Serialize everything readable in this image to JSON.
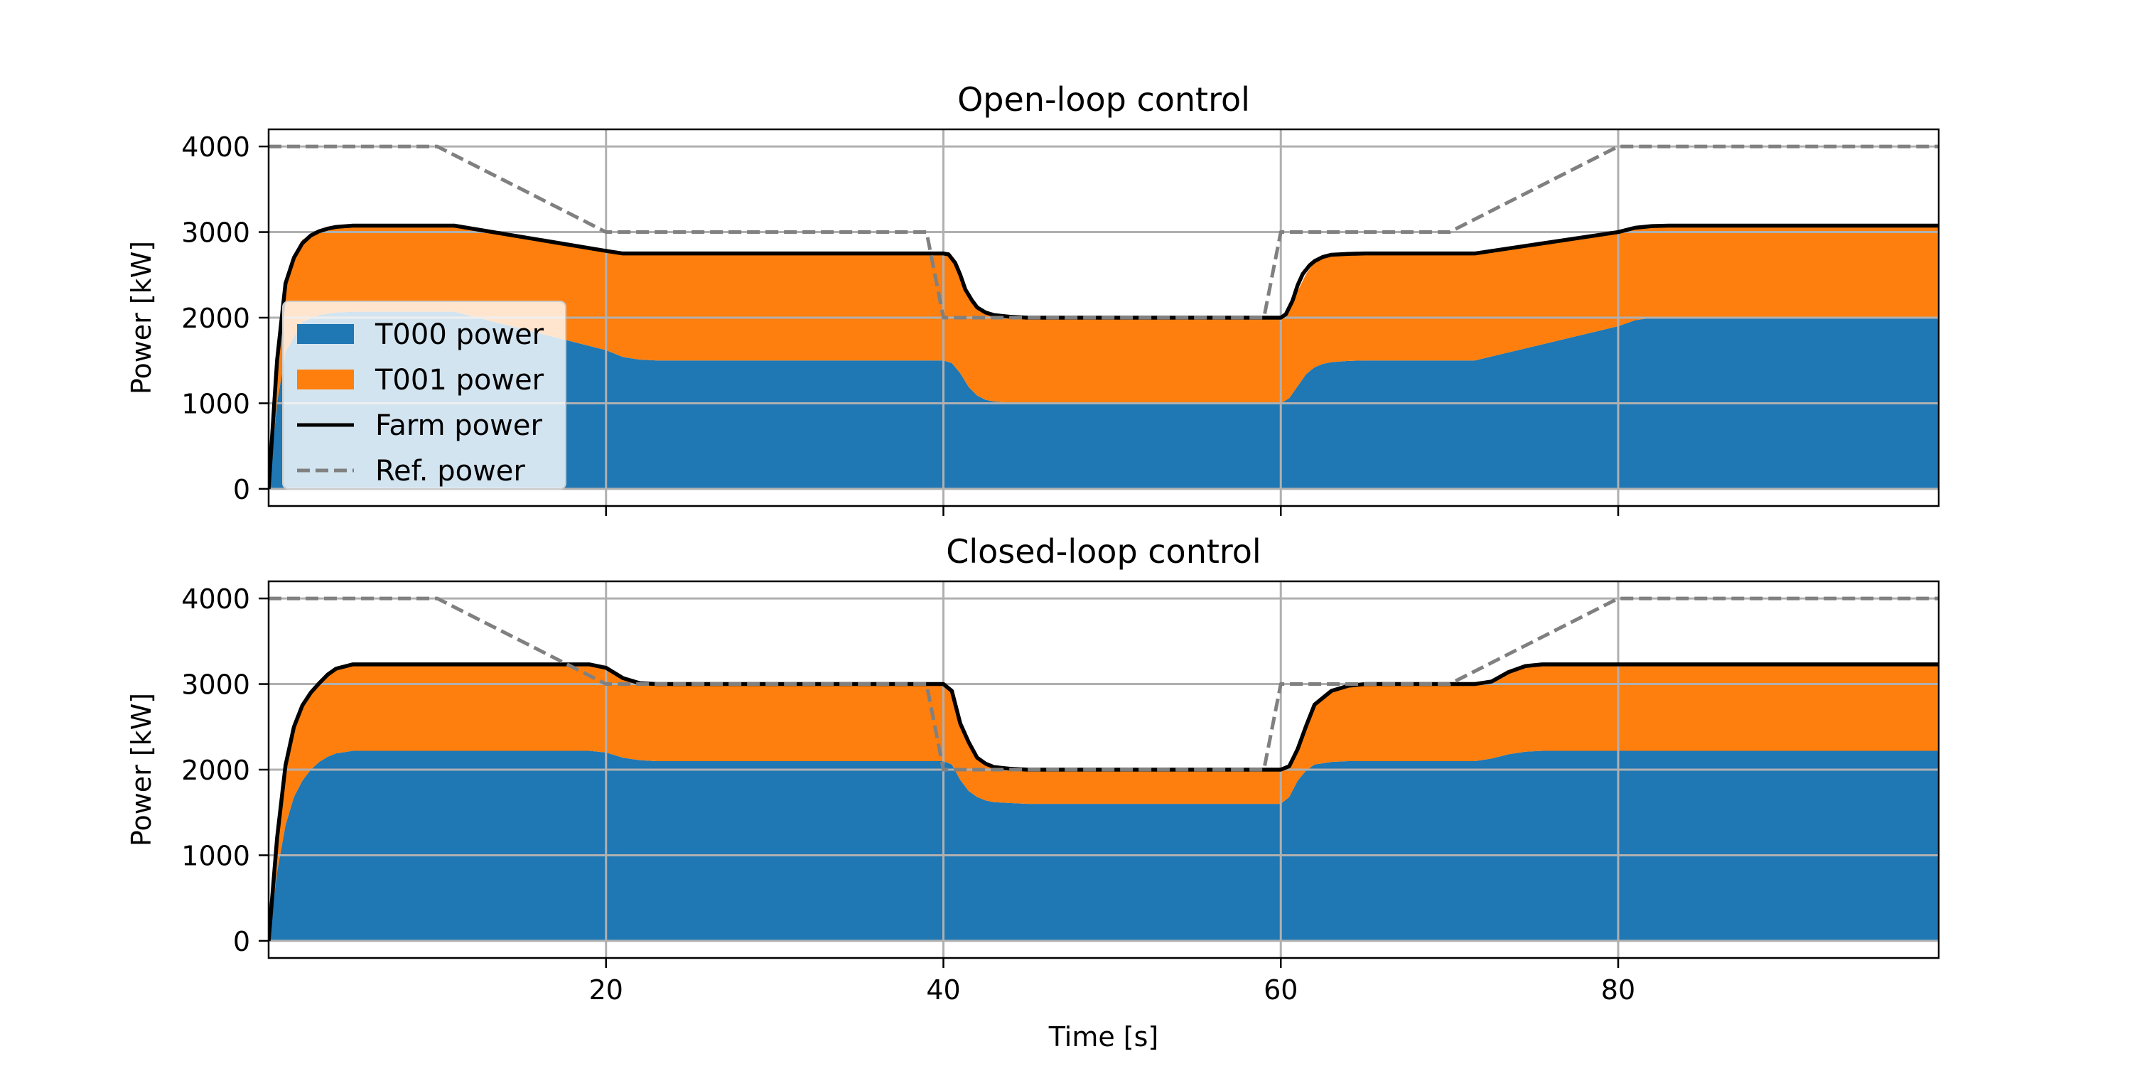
{
  "chart_data": [
    {
      "type": "area",
      "title": "Open-loop control",
      "xlabel": "",
      "ylabel": "Power [kW]",
      "xlim": [
        0,
        99
      ],
      "ylim": [
        -200,
        4200
      ],
      "x_ticks": [
        20,
        40,
        60,
        80
      ],
      "x_tick_labels": [
        "",
        "",
        "",
        ""
      ],
      "y_ticks": [
        0,
        1000,
        2000,
        3000,
        4000
      ],
      "y_tick_labels": [
        "0",
        "1000",
        "2000",
        "3000",
        "4000"
      ],
      "grid": true,
      "legend": {
        "placement": "center-left",
        "entries": [
          {
            "label": "T000 power",
            "kind": "patch",
            "color": "#1f77b4"
          },
          {
            "label": "T001 power",
            "kind": "patch",
            "color": "#ff7f0e"
          },
          {
            "label": "Farm power",
            "kind": "line",
            "color": "#000000",
            "style": "solid"
          },
          {
            "label": "Ref. power",
            "kind": "line",
            "color": "#808080",
            "style": "dashed"
          }
        ]
      },
      "stacked_series": [
        {
          "name": "T000 power",
          "color": "#1f77b4",
          "points": [
            [
              0,
              0
            ],
            [
              0.5,
              1000
            ],
            [
              1,
              1600
            ],
            [
              2,
              1950
            ],
            [
              3,
              2030
            ],
            [
              4,
              2060
            ],
            [
              5,
              2070
            ],
            [
              11,
              2070
            ],
            [
              20,
              1620
            ],
            [
              21,
              1540
            ],
            [
              22,
              1510
            ],
            [
              23,
              1500
            ],
            [
              40,
              1500
            ],
            [
              40.5,
              1470
            ],
            [
              41,
              1350
            ],
            [
              41.5,
              1190
            ],
            [
              42,
              1090
            ],
            [
              42.5,
              1040
            ],
            [
              43,
              1020
            ],
            [
              44,
              1005
            ],
            [
              45,
              1000
            ],
            [
              60,
              1000
            ],
            [
              60.5,
              1060
            ],
            [
              61,
              1200
            ],
            [
              61.5,
              1340
            ],
            [
              62,
              1420
            ],
            [
              62.5,
              1460
            ],
            [
              63,
              1480
            ],
            [
              64,
              1495
            ],
            [
              65,
              1500
            ],
            [
              71.5,
              1500
            ],
            [
              80,
              1900
            ],
            [
              81,
              1970
            ],
            [
              82,
              2000
            ],
            [
              99,
              2000
            ]
          ]
        },
        {
          "name": "T001 power",
          "color": "#ff7f0e",
          "points": [
            [
              0,
              0
            ],
            [
              0.5,
              500
            ],
            [
              1,
              800
            ],
            [
              1.5,
              920
            ],
            [
              2,
              960
            ],
            [
              3,
              990
            ],
            [
              4,
              1000
            ],
            [
              5,
              1010
            ],
            [
              11,
              1010
            ],
            [
              20,
              1160
            ],
            [
              21,
              1200
            ],
            [
              22,
              1240
            ],
            [
              23,
              1250
            ],
            [
              40,
              1250
            ],
            [
              40.5,
              1240
            ],
            [
              41,
              1150
            ],
            [
              42,
              1030
            ],
            [
              43,
              1000
            ],
            [
              45,
              1000
            ],
            [
              60,
              1000
            ],
            [
              61,
              1110
            ],
            [
              62,
              1230
            ],
            [
              63,
              1260
            ],
            [
              64,
              1250
            ],
            [
              65,
              1250
            ],
            [
              71.5,
              1250
            ],
            [
              80,
              1120
            ],
            [
              81,
              1090
            ],
            [
              82,
              1080
            ],
            [
              99,
              1080
            ]
          ]
        }
      ],
      "series": [
        {
          "name": "Farm power",
          "color": "#000000",
          "style": "solid",
          "points": [
            [
              0,
              0
            ],
            [
              0.5,
              1500
            ],
            [
              1,
              2400
            ],
            [
              1.5,
              2700
            ],
            [
              2,
              2870
            ],
            [
              2.5,
              2960
            ],
            [
              3,
              3010
            ],
            [
              3.5,
              3040
            ],
            [
              4,
              3060
            ],
            [
              5,
              3075
            ],
            [
              11,
              3075
            ],
            [
              20,
              2780
            ],
            [
              21,
              2750
            ],
            [
              40,
              2750
            ],
            [
              40.3,
              2740
            ],
            [
              40.7,
              2640
            ],
            [
              41,
              2500
            ],
            [
              41.3,
              2330
            ],
            [
              41.7,
              2200
            ],
            [
              42,
              2120
            ],
            [
              42.5,
              2060
            ],
            [
              43,
              2030
            ],
            [
              44,
              2010
            ],
            [
              45,
              2000
            ],
            [
              60,
              2000
            ],
            [
              60.3,
              2040
            ],
            [
              60.7,
              2200
            ],
            [
              61,
              2380
            ],
            [
              61.3,
              2510
            ],
            [
              61.7,
              2610
            ],
            [
              62,
              2660
            ],
            [
              62.5,
              2710
            ],
            [
              63,
              2735
            ],
            [
              64,
              2745
            ],
            [
              65,
              2750
            ],
            [
              71.5,
              2750
            ],
            [
              80,
              3000
            ],
            [
              81,
              3050
            ],
            [
              82,
              3070
            ],
            [
              83,
              3075
            ],
            [
              99,
              3075
            ]
          ]
        },
        {
          "name": "Ref. power",
          "color": "#808080",
          "style": "dashed",
          "points": [
            [
              0,
              4000
            ],
            [
              10,
              4000
            ],
            [
              20,
              3000
            ],
            [
              39,
              3000
            ],
            [
              40,
              2000
            ],
            [
              59,
              2000
            ],
            [
              60,
              3000
            ],
            [
              70,
              3000
            ],
            [
              80,
              4000
            ],
            [
              99,
              4000
            ]
          ]
        }
      ]
    },
    {
      "type": "area",
      "title": "Closed-loop control",
      "xlabel": "Time [s]",
      "ylabel": "Power [kW]",
      "xlim": [
        0,
        99
      ],
      "ylim": [
        -200,
        4200
      ],
      "x_ticks": [
        20,
        40,
        60,
        80
      ],
      "x_tick_labels": [
        "20",
        "40",
        "60",
        "80"
      ],
      "y_ticks": [
        0,
        1000,
        2000,
        3000,
        4000
      ],
      "y_tick_labels": [
        "0",
        "1000",
        "2000",
        "3000",
        "4000"
      ],
      "grid": true,
      "stacked_series": [
        {
          "name": "T000 power",
          "color": "#1f77b4",
          "points": [
            [
              0,
              0
            ],
            [
              0.5,
              800
            ],
            [
              1,
              1350
            ],
            [
              1.5,
              1680
            ],
            [
              2,
              1870
            ],
            [
              2.5,
              2000
            ],
            [
              3,
              2090
            ],
            [
              3.5,
              2150
            ],
            [
              4,
              2190
            ],
            [
              5,
              2220
            ],
            [
              19,
              2220
            ],
            [
              20,
              2200
            ],
            [
              21,
              2140
            ],
            [
              22,
              2110
            ],
            [
              23,
              2100
            ],
            [
              40,
              2100
            ],
            [
              40.5,
              2060
            ],
            [
              41,
              1880
            ],
            [
              41.5,
              1750
            ],
            [
              42,
              1680
            ],
            [
              42.5,
              1640
            ],
            [
              43,
              1620
            ],
            [
              44,
              1610
            ],
            [
              45,
              1600
            ],
            [
              60,
              1600
            ],
            [
              60.5,
              1680
            ],
            [
              61,
              1870
            ],
            [
              61.5,
              1990
            ],
            [
              62,
              2060
            ],
            [
              63,
              2090
            ],
            [
              64,
              2100
            ],
            [
              71.5,
              2100
            ],
            [
              72.5,
              2130
            ],
            [
              73.5,
              2180
            ],
            [
              74.5,
              2210
            ],
            [
              75.5,
              2220
            ],
            [
              99,
              2220
            ]
          ]
        },
        {
          "name": "T001 power",
          "color": "#ff7f0e",
          "points": [
            [
              0,
              0
            ],
            [
              0.5,
              400
            ],
            [
              1,
              700
            ],
            [
              1.5,
              820
            ],
            [
              2,
              880
            ],
            [
              2.5,
              900
            ],
            [
              3,
              920
            ],
            [
              3.5,
              960
            ],
            [
              4,
              990
            ],
            [
              5,
              1010
            ],
            [
              19,
              1010
            ],
            [
              20,
              990
            ],
            [
              21,
              930
            ],
            [
              22,
              900
            ],
            [
              23,
              900
            ],
            [
              40,
              900
            ],
            [
              40.5,
              860
            ],
            [
              41,
              660
            ],
            [
              41.5,
              570
            ],
            [
              42,
              460
            ],
            [
              42.5,
              430
            ],
            [
              43,
              410
            ],
            [
              44,
              400
            ],
            [
              45,
              400
            ],
            [
              60,
              400
            ],
            [
              60.5,
              360
            ],
            [
              61,
              370
            ],
            [
              61.5,
              520
            ],
            [
              62,
              700
            ],
            [
              62.5,
              780
            ],
            [
              63,
              830
            ],
            [
              64,
              880
            ],
            [
              65,
              900
            ],
            [
              71.5,
              900
            ],
            [
              72.5,
              900
            ],
            [
              73.5,
              960
            ],
            [
              74.5,
              1000
            ],
            [
              75.5,
              1010
            ],
            [
              99,
              1010
            ]
          ]
        }
      ],
      "series": [
        {
          "name": "Farm power",
          "color": "#000000",
          "style": "solid",
          "points": [
            [
              0,
              0
            ],
            [
              0.5,
              1200
            ],
            [
              1,
              2050
            ],
            [
              1.5,
              2500
            ],
            [
              2,
              2750
            ],
            [
              2.5,
              2900
            ],
            [
              3,
              3010
            ],
            [
              3.5,
              3110
            ],
            [
              4,
              3180
            ],
            [
              5,
              3230
            ],
            [
              19,
              3230
            ],
            [
              20,
              3190
            ],
            [
              21,
              3070
            ],
            [
              22,
              3010
            ],
            [
              23,
              3000
            ],
            [
              40,
              3000
            ],
            [
              40.5,
              2920
            ],
            [
              41,
              2540
            ],
            [
              41.5,
              2320
            ],
            [
              42,
              2140
            ],
            [
              42.5,
              2070
            ],
            [
              43,
              2030
            ],
            [
              44,
              2010
            ],
            [
              45,
              2000
            ],
            [
              60,
              2000
            ],
            [
              60.5,
              2040
            ],
            [
              61,
              2240
            ],
            [
              61.5,
              2510
            ],
            [
              62,
              2760
            ],
            [
              62.5,
              2840
            ],
            [
              63,
              2920
            ],
            [
              64,
              2980
            ],
            [
              65,
              3000
            ],
            [
              71.5,
              3000
            ],
            [
              72.5,
              3030
            ],
            [
              73.5,
              3140
            ],
            [
              74.5,
              3210
            ],
            [
              75.5,
              3230
            ],
            [
              99,
              3230
            ]
          ]
        },
        {
          "name": "Ref. power",
          "color": "#808080",
          "style": "dashed",
          "points": [
            [
              0,
              4000
            ],
            [
              10,
              4000
            ],
            [
              20,
              3000
            ],
            [
              39,
              3000
            ],
            [
              40,
              2000
            ],
            [
              59,
              2000
            ],
            [
              60,
              3000
            ],
            [
              70,
              3000
            ],
            [
              80,
              4000
            ],
            [
              99,
              4000
            ]
          ]
        }
      ]
    }
  ]
}
